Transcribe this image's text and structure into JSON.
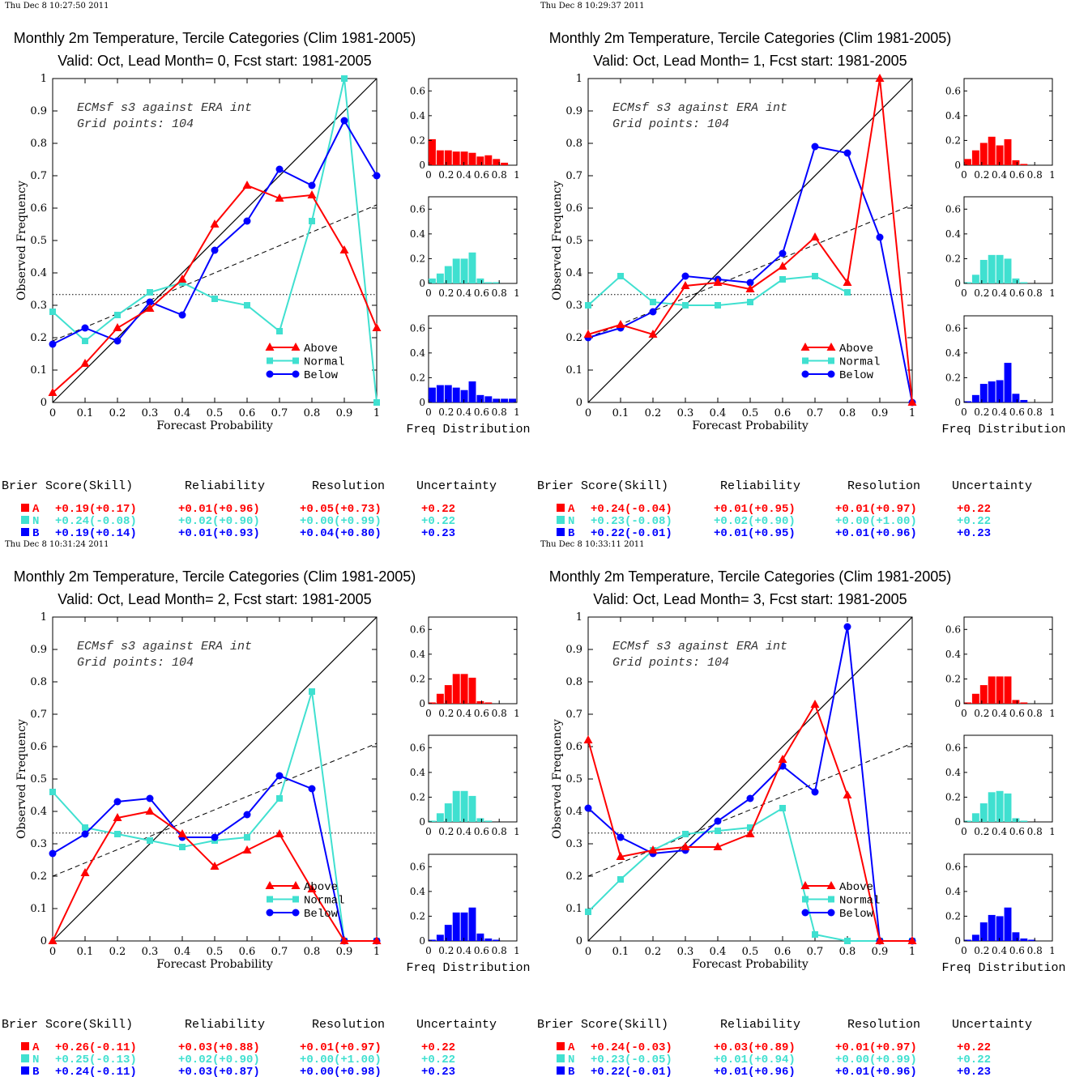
{
  "colors": {
    "above": "#ff0000",
    "normal": "#40e0d0",
    "below": "#0000ff",
    "diag": "#000000"
  },
  "tick_labels": {
    "main_x": [
      "0",
      "0.1",
      "0.2",
      "0.3",
      "0.4",
      "0.5",
      "0.6",
      "0.7",
      "0.8",
      "0.9",
      "1"
    ],
    "main_y": [
      "0",
      "0.1",
      "0.2",
      "0.3",
      "0.4",
      "0.5",
      "0.6",
      "0.7",
      "0.8",
      "0.9",
      "1"
    ],
    "hist_x": [
      "0",
      "0.2",
      "0.4",
      "0.6",
      "0.8",
      "1"
    ],
    "hist_y": [
      "0",
      "0.2",
      "0.4",
      "0.6"
    ]
  },
  "labels": {
    "xlabel": "Forecast Probability",
    "ylabel": "Observed Frequency",
    "hist_label": "Freq Distribution",
    "annot1": "ECMsf s3 against ERA int",
    "annot2": "Grid points:  104",
    "legend": [
      "Above",
      "Normal",
      "Below"
    ],
    "score_headers": [
      "Brier Score(Skill)",
      "Reliability",
      "Resolution",
      "Uncertainty"
    ],
    "cat_letters": [
      "A",
      "N",
      "B"
    ]
  },
  "chart_data": [
    {
      "type": "line",
      "timestamp": "Thu Dec  8 10:27:50 2011",
      "title": "Monthly 2m Temperature, Tercile Categories (Clim 1981-2005)",
      "subtitle": "Valid: Oct, Lead Month= 0, Fcst start: 1981-2005",
      "xlim": [
        0,
        1
      ],
      "ylim": [
        0,
        1
      ],
      "x": [
        0,
        0.1,
        0.2,
        0.3,
        0.4,
        0.5,
        0.6,
        0.7,
        0.8,
        0.9,
        1
      ],
      "series": [
        {
          "name": "Above",
          "values": [
            0.03,
            0.12,
            0.23,
            0.29,
            0.38,
            0.55,
            0.67,
            0.63,
            0.64,
            0.47,
            0.23
          ]
        },
        {
          "name": "Normal",
          "values": [
            0.28,
            0.19,
            0.27,
            0.34,
            0.37,
            0.32,
            0.3,
            0.22,
            0.56,
            1.0,
            0.0
          ]
        },
        {
          "name": "Below",
          "values": [
            0.18,
            0.23,
            0.19,
            0.31,
            0.27,
            0.47,
            0.56,
            0.72,
            0.67,
            0.87,
            0.7
          ]
        }
      ],
      "reference_line": {
        "y0": 0.19,
        "y1": 0.61
      },
      "climatology": 0.333,
      "hist": [
        [
          0.21,
          0.12,
          0.12,
          0.11,
          0.11,
          0.1,
          0.07,
          0.08,
          0.05,
          0.02,
          0
        ],
        [
          0.04,
          0.08,
          0.14,
          0.2,
          0.2,
          0.25,
          0.04,
          0.01,
          0.01,
          0,
          0
        ],
        [
          0.12,
          0.14,
          0.14,
          0.12,
          0.1,
          0.17,
          0.06,
          0.05,
          0.03,
          0.03,
          0.03
        ]
      ],
      "scores": [
        [
          "+0.19(+0.17)",
          "+0.01(+0.96)",
          "+0.05(+0.73)",
          "+0.22"
        ],
        [
          "+0.24(-0.08)",
          "+0.02(+0.90)",
          "+0.00(+0.99)",
          "+0.22"
        ],
        [
          "+0.19(+0.14)",
          "+0.01(+0.93)",
          "+0.04(+0.80)",
          "+0.23"
        ]
      ]
    },
    {
      "type": "line",
      "timestamp": "Thu Dec  8 10:29:37 2011",
      "title": "Monthly 2m Temperature, Tercile Categories (Clim 1981-2005)",
      "subtitle": "Valid: Oct, Lead Month= 1, Fcst start: 1981-2005",
      "xlim": [
        0,
        1
      ],
      "ylim": [
        0,
        1
      ],
      "x": [
        0,
        0.1,
        0.2,
        0.3,
        0.4,
        0.5,
        0.6,
        0.7,
        0.8,
        0.9,
        1
      ],
      "series": [
        {
          "name": "Above",
          "values": [
            0.21,
            0.24,
            0.21,
            0.36,
            0.37,
            0.35,
            0.42,
            0.51,
            0.37,
            1.0,
            0.0
          ]
        },
        {
          "name": "Normal",
          "values": [
            0.3,
            0.39,
            0.31,
            0.3,
            0.3,
            0.31,
            0.38,
            0.39,
            0.34,
            null,
            null
          ]
        },
        {
          "name": "Below",
          "values": [
            0.2,
            0.23,
            0.28,
            0.39,
            0.38,
            0.37,
            0.46,
            0.79,
            0.77,
            0.51,
            0.0
          ]
        }
      ],
      "reference_line": {
        "y0": 0.2,
        "y1": 0.61
      },
      "climatology": 0.333,
      "hist": [
        [
          0.05,
          0.12,
          0.18,
          0.23,
          0.16,
          0.21,
          0.04,
          0.01,
          0,
          0,
          0
        ],
        [
          0.01,
          0.07,
          0.19,
          0.23,
          0.23,
          0.2,
          0.04,
          0.01,
          0,
          0,
          0
        ],
        [
          0.01,
          0.06,
          0.15,
          0.17,
          0.18,
          0.32,
          0.07,
          0.02,
          0,
          0,
          0
        ]
      ],
      "scores": [
        [
          "+0.24(-0.04)",
          "+0.01(+0.95)",
          "+0.01(+0.97)",
          "+0.22"
        ],
        [
          "+0.23(-0.08)",
          "+0.02(+0.90)",
          "+0.00(+1.00)",
          "+0.22"
        ],
        [
          "+0.22(-0.01)",
          "+0.01(+0.95)",
          "+0.01(+0.96)",
          "+0.23"
        ]
      ]
    },
    {
      "type": "line",
      "timestamp": "Thu Dec  8 10:31:24 2011",
      "title": "Monthly 2m Temperature, Tercile Categories (Clim 1981-2005)",
      "subtitle": "Valid: Oct, Lead Month= 2, Fcst start: 1981-2005",
      "xlim": [
        0,
        1
      ],
      "ylim": [
        0,
        1
      ],
      "x": [
        0,
        0.1,
        0.2,
        0.3,
        0.4,
        0.5,
        0.6,
        0.7,
        0.8,
        0.9,
        1
      ],
      "series": [
        {
          "name": "Above",
          "values": [
            0.0,
            0.21,
            0.38,
            0.4,
            0.33,
            0.23,
            0.28,
            0.33,
            0.16,
            0.0,
            0.0
          ]
        },
        {
          "name": "Normal",
          "values": [
            0.46,
            0.35,
            0.33,
            0.31,
            0.29,
            0.31,
            0.32,
            0.44,
            0.77,
            0.0,
            0.0
          ]
        },
        {
          "name": "Below",
          "values": [
            0.27,
            0.33,
            0.43,
            0.44,
            0.32,
            0.32,
            0.39,
            0.51,
            0.47,
            0.0,
            0.0
          ]
        }
      ],
      "reference_line": {
        "y0": 0.2,
        "y1": 0.61
      },
      "climatology": 0.333,
      "hist": [
        [
          0.01,
          0.08,
          0.15,
          0.24,
          0.24,
          0.21,
          0.02,
          0.01,
          0,
          0,
          0
        ],
        [
          0.01,
          0.07,
          0.15,
          0.25,
          0.25,
          0.21,
          0.03,
          0.01,
          0,
          0,
          0
        ],
        [
          0.01,
          0.05,
          0.13,
          0.23,
          0.23,
          0.27,
          0.06,
          0.02,
          0.01,
          0,
          0
        ]
      ],
      "scores": [
        [
          "+0.26(-0.11)",
          "+0.03(+0.88)",
          "+0.01(+0.97)",
          "+0.22"
        ],
        [
          "+0.25(-0.13)",
          "+0.02(+0.90)",
          "+0.00(+1.00)",
          "+0.22"
        ],
        [
          "+0.24(-0.11)",
          "+0.03(+0.87)",
          "+0.00(+0.98)",
          "+0.23"
        ]
      ]
    },
    {
      "type": "line",
      "timestamp": "Thu Dec  8 10:33:11 2011",
      "title": "Monthly 2m Temperature, Tercile Categories (Clim 1981-2005)",
      "subtitle": "Valid: Oct, Lead Month= 3, Fcst start: 1981-2005",
      "xlim": [
        0,
        1
      ],
      "ylim": [
        0,
        1
      ],
      "x": [
        0,
        0.1,
        0.2,
        0.3,
        0.4,
        0.5,
        0.6,
        0.7,
        0.8,
        0.9,
        1
      ],
      "series": [
        {
          "name": "Above",
          "values": [
            0.62,
            0.26,
            0.28,
            0.29,
            0.29,
            0.33,
            0.56,
            0.73,
            0.45,
            0.0,
            0.0
          ]
        },
        {
          "name": "Normal",
          "values": [
            0.09,
            0.19,
            0.28,
            0.33,
            0.34,
            0.35,
            0.41,
            0.02,
            0.0,
            0.0,
            0.0
          ]
        },
        {
          "name": "Below",
          "values": [
            0.41,
            0.32,
            0.27,
            0.28,
            0.37,
            0.44,
            0.54,
            0.46,
            0.97,
            0.0,
            0.0
          ]
        }
      ],
      "reference_line": {
        "y0": 0.2,
        "y1": 0.61
      },
      "climatology": 0.333,
      "hist": [
        [
          0.01,
          0.08,
          0.15,
          0.22,
          0.22,
          0.22,
          0.03,
          0.01,
          0,
          0,
          0
        ],
        [
          0.01,
          0.07,
          0.15,
          0.24,
          0.25,
          0.23,
          0.03,
          0.01,
          0,
          0,
          0
        ],
        [
          0.01,
          0.05,
          0.15,
          0.21,
          0.2,
          0.27,
          0.07,
          0.02,
          0.01,
          0,
          0
        ]
      ],
      "scores": [
        [
          "+0.24(-0.03)",
          "+0.03(+0.89)",
          "+0.01(+0.97)",
          "+0.22"
        ],
        [
          "+0.23(-0.05)",
          "+0.01(+0.94)",
          "+0.00(+0.99)",
          "+0.22"
        ],
        [
          "+0.22(-0.01)",
          "+0.01(+0.96)",
          "+0.01(+0.96)",
          "+0.23"
        ]
      ]
    }
  ]
}
